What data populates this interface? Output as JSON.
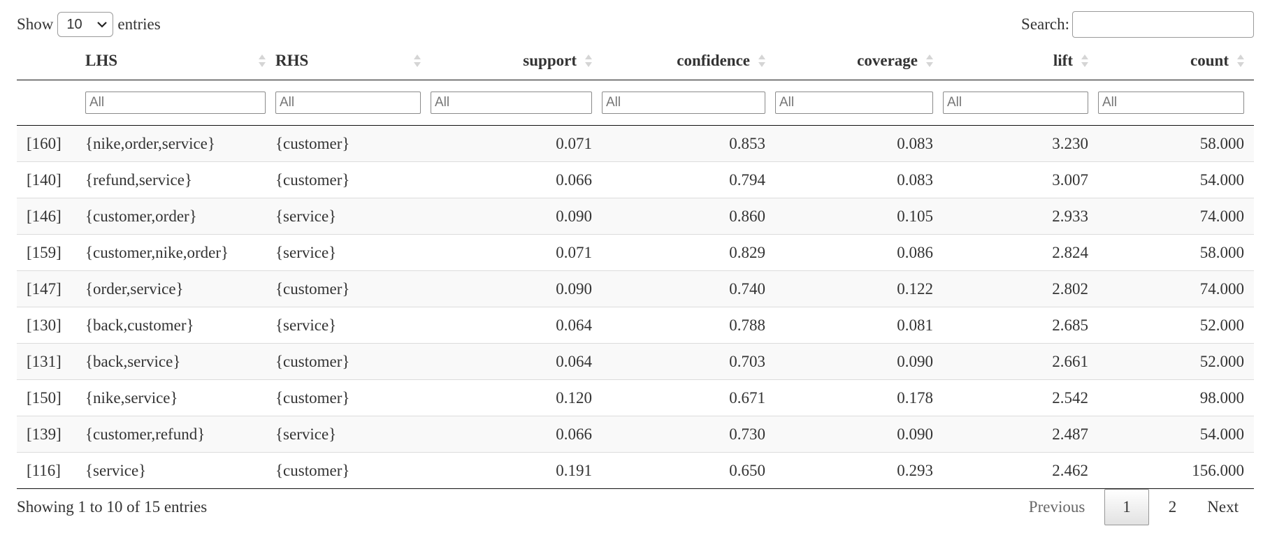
{
  "length_control": {
    "show_label": "Show",
    "selected": "10",
    "entries_label": "entries"
  },
  "search": {
    "label": "Search:",
    "value": ""
  },
  "columns": [
    "",
    "LHS",
    "RHS",
    "support",
    "confidence",
    "coverage",
    "lift",
    "count"
  ],
  "filter_placeholder": "All",
  "rows": [
    [
      "[160]",
      "{nike,order,service}",
      "{customer}",
      "0.071",
      "0.853",
      "0.083",
      "3.230",
      "58.000"
    ],
    [
      "[140]",
      "{refund,service}",
      "{customer}",
      "0.066",
      "0.794",
      "0.083",
      "3.007",
      "54.000"
    ],
    [
      "[146]",
      "{customer,order}",
      "{service}",
      "0.090",
      "0.860",
      "0.105",
      "2.933",
      "74.000"
    ],
    [
      "[159]",
      "{customer,nike,order}",
      "{service}",
      "0.071",
      "0.829",
      "0.086",
      "2.824",
      "58.000"
    ],
    [
      "[147]",
      "{order,service}",
      "{customer}",
      "0.090",
      "0.740",
      "0.122",
      "2.802",
      "74.000"
    ],
    [
      "[130]",
      "{back,customer}",
      "{service}",
      "0.064",
      "0.788",
      "0.081",
      "2.685",
      "52.000"
    ],
    [
      "[131]",
      "{back,service}",
      "{customer}",
      "0.064",
      "0.703",
      "0.090",
      "2.661",
      "52.000"
    ],
    [
      "[150]",
      "{nike,service}",
      "{customer}",
      "0.120",
      "0.671",
      "0.178",
      "2.542",
      "98.000"
    ],
    [
      "[139]",
      "{customer,refund}",
      "{service}",
      "0.066",
      "0.730",
      "0.090",
      "2.487",
      "54.000"
    ],
    [
      "[116]",
      "{service}",
      "{customer}",
      "0.191",
      "0.650",
      "0.293",
      "2.462",
      "156.000"
    ]
  ],
  "info": "Showing 1 to 10 of 15 entries",
  "pagination": {
    "previous": "Previous",
    "pages": [
      "1",
      "2"
    ],
    "current": "1",
    "next": "Next"
  }
}
